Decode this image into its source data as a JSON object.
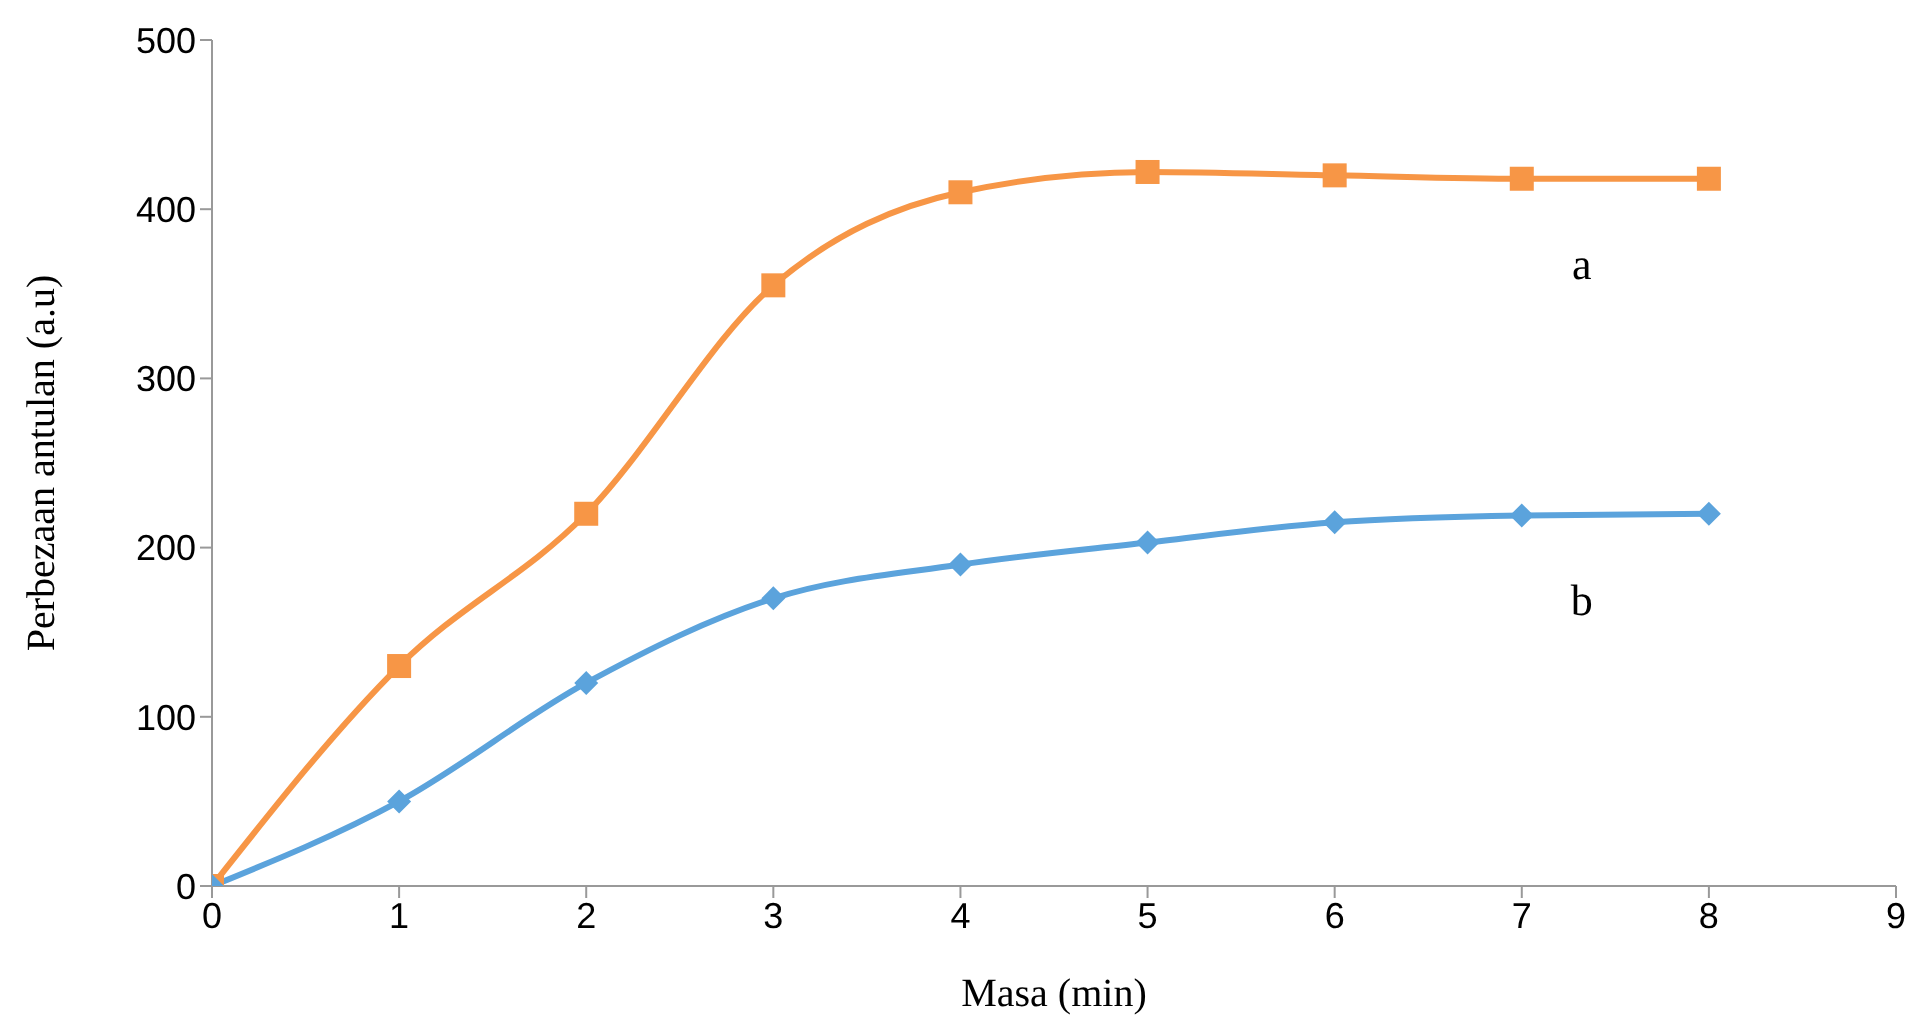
{
  "chart_data": {
    "type": "line",
    "xlabel": "Masa (min)",
    "ylabel": "Perbezaan antulan (a.u)",
    "x": [
      0,
      1,
      2,
      3,
      4,
      5,
      6,
      7,
      8
    ],
    "series": [
      {
        "name": "a",
        "color": "#f79646",
        "marker": "square",
        "values": [
          0,
          130,
          220,
          355,
          410,
          422,
          420,
          418,
          418
        ]
      },
      {
        "name": "b",
        "color": "#5ba3dc",
        "marker": "diamond",
        "values": [
          0,
          50,
          120,
          170,
          190,
          203,
          215,
          219,
          220
        ]
      }
    ],
    "xlim": [
      0,
      9
    ],
    "xticks": [
      0,
      1,
      2,
      3,
      4,
      5,
      6,
      7,
      8,
      9
    ],
    "ylim": [
      0,
      500
    ],
    "yticks": [
      0,
      100,
      200,
      300,
      400,
      500
    ],
    "grid": false,
    "legend": false,
    "line_style": "solid"
  }
}
